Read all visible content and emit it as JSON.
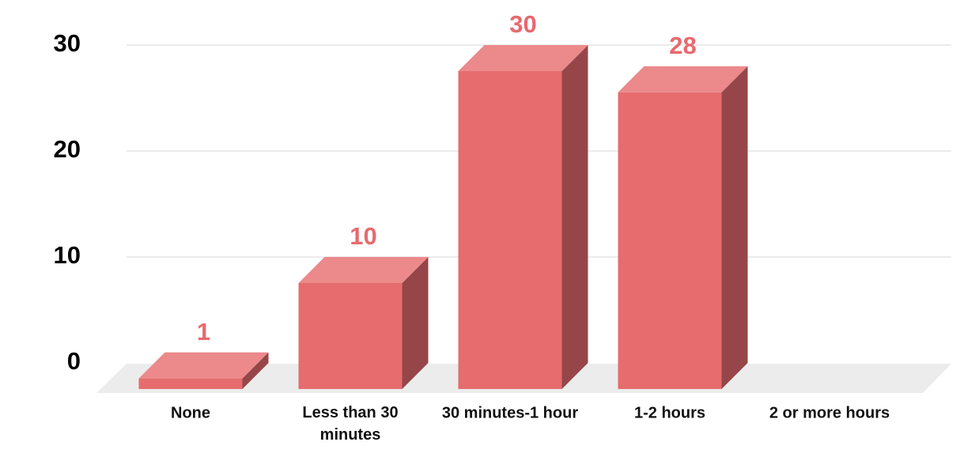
{
  "chart_data": {
    "type": "bar3d",
    "categories": [
      "None",
      "Less than 30 minutes",
      "30 minutes-1 hour",
      "1-2 hours",
      "2 or more hours"
    ],
    "values": [
      1,
      10,
      30,
      28,
      0
    ],
    "color": "#e66c6e",
    "ylim": [
      0,
      30
    ],
    "yticks": [
      0,
      10,
      20,
      30
    ],
    "grid": true
  }
}
